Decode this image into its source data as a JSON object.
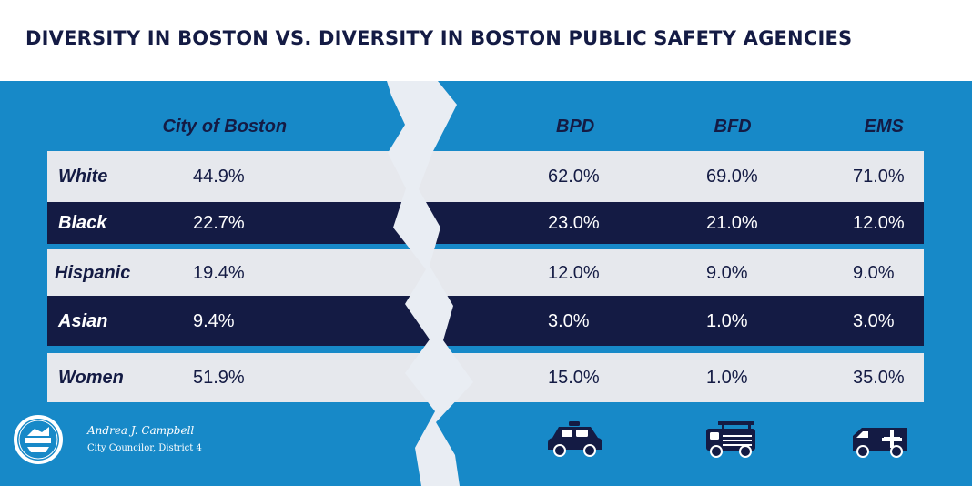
{
  "colors": {
    "background": "#ffffff",
    "panel": "#1789c8",
    "navy": "#141b44",
    "light_row": "#e6e8ed",
    "crack": "#e9edf3"
  },
  "chart_data": {
    "type": "table",
    "title": "DIVERSITY IN BOSTON VS. DIVERSITY IN BOSTON PUBLIC SAFETY AGENCIES",
    "columns": [
      "City of Boston",
      "BPD",
      "BFD",
      "EMS"
    ],
    "rows": [
      {
        "label": "White",
        "values": [
          "44.9%",
          "62.0%",
          "69.0%",
          "71.0%"
        ],
        "style": "light"
      },
      {
        "label": "Black",
        "values": [
          "22.7%",
          "23.0%",
          "21.0%",
          "12.0%"
        ],
        "style": "dark"
      },
      {
        "label": "Hispanic",
        "values": [
          "19.4%",
          "12.0%",
          "9.0%",
          "9.0%"
        ],
        "style": "light"
      },
      {
        "label": "Asian",
        "values": [
          "9.4%",
          "3.0%",
          "1.0%",
          "3.0%"
        ],
        "style": "dark"
      },
      {
        "label": "Women",
        "values": [
          "51.9%",
          "15.0%",
          "1.0%",
          "35.0%"
        ],
        "style": "light"
      }
    ]
  },
  "footer": {
    "name": "Andrea J. Campbell",
    "role": "City Councilor, District 4",
    "seal_icon": "city-of-boston-seal-icon",
    "icons": [
      "police-car-icon",
      "fire-truck-icon",
      "ambulance-icon"
    ]
  }
}
